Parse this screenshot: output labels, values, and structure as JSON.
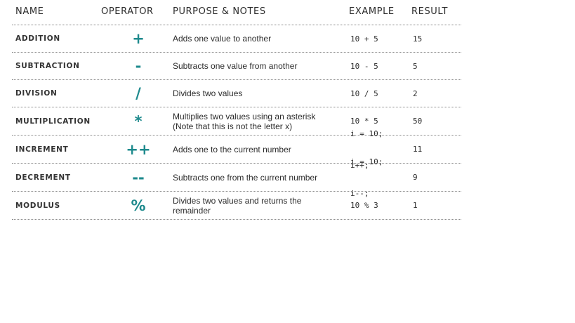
{
  "headers": {
    "name": "NAME",
    "operator": "OPERATOR",
    "purpose": "PURPOSE & NOTES",
    "example": "EXAMPLE",
    "result": "RESULT"
  },
  "rows": [
    {
      "name": "ADDITION",
      "operator": "+",
      "purpose_line1": "Adds one value to another",
      "purpose_line2": "",
      "example_line1": "10 + 5",
      "example_line2": "",
      "result": "15"
    },
    {
      "name": "SUBTRACTION",
      "operator": "-",
      "purpose_line1": "Subtracts one value from another",
      "purpose_line2": "",
      "example_line1": "10 - 5",
      "example_line2": "",
      "result": "5"
    },
    {
      "name": "DIVISION",
      "operator": "/",
      "purpose_line1": "Divides two values",
      "purpose_line2": "",
      "example_line1": "10 / 5",
      "example_line2": "",
      "result": "2"
    },
    {
      "name": "MULTIPLICATION",
      "operator": "*",
      "purpose_line1": "Multiplies two values using an asterisk",
      "purpose_line2": "(Note that this is not the letter x)",
      "example_line1": "10 * 5",
      "example_line2": "",
      "result": "50"
    },
    {
      "name": "INCREMENT",
      "operator": "++",
      "purpose_line1": "Adds one to the current number",
      "purpose_line2": "",
      "example_line1": "i = 10;",
      "example_line2": "i++;",
      "result": "11"
    },
    {
      "name": "DECREMENT",
      "operator": "--",
      "purpose_line1": "Subtracts one from the current number",
      "purpose_line2": "",
      "example_line1": "i = 10;",
      "example_line2": "i--;",
      "result": "9"
    },
    {
      "name": "MODULUS",
      "operator": "%",
      "purpose_line1": "Divides two values and returns the",
      "purpose_line2": "remainder",
      "example_line1": "10 % 3",
      "example_line2": "",
      "result": "1"
    }
  ]
}
